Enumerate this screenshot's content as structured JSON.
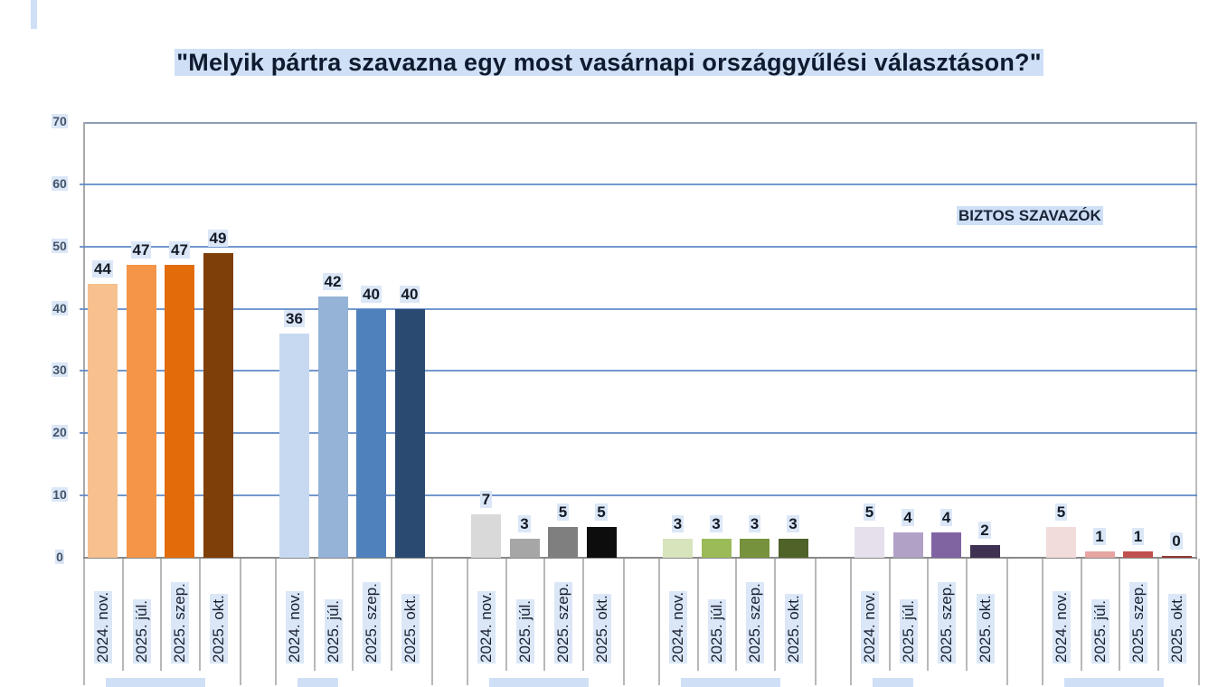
{
  "page": {
    "title": "\"Melyik pártra szavazna egy most vasárnapi országgyűlési választáson?\"",
    "annotation": "BIZTOS SZAVAZÓK"
  },
  "chart_data": {
    "type": "bar",
    "title": "\"Melyik pártra szavazna egy most vasárnapi országgyűlési választáson?\"",
    "subtitle": "BIZTOS SZAVAZÓK",
    "xlabel": "",
    "ylabel": "",
    "ylim": [
      0,
      70
    ],
    "yticks": [
      0,
      10,
      20,
      30,
      40,
      50,
      60,
      70
    ],
    "grid": true,
    "legend": "none",
    "categories": [
      "2024. nov.",
      "2025. júl.",
      "2025. szep.",
      "2025. okt."
    ],
    "groups": [
      {
        "name": "",
        "values": [
          44,
          47,
          47,
          49
        ],
        "colors": [
          "#f6c08f",
          "#f49548",
          "#e36c0a",
          "#7f3f08"
        ]
      },
      {
        "name": "",
        "values": [
          36,
          42,
          40,
          40
        ],
        "colors": [
          "#c6d9f0",
          "#95b3d7",
          "#4f81bd",
          "#2a4a72"
        ]
      },
      {
        "name": "",
        "values": [
          7,
          3,
          5,
          5
        ],
        "colors": [
          "#d9d9d9",
          "#a6a6a6",
          "#7f7f7f",
          "#0d0d0d"
        ]
      },
      {
        "name": "",
        "values": [
          3,
          3,
          3,
          3
        ],
        "colors": [
          "#d7e4bc",
          "#9bbb59",
          "#76923c",
          "#4f6228"
        ]
      },
      {
        "name": "",
        "values": [
          5,
          4,
          4,
          2
        ],
        "colors": [
          "#e5e0ec",
          "#b2a1c7",
          "#8064a2",
          "#3f3151"
        ]
      },
      {
        "name": "",
        "values": [
          5,
          1,
          1,
          0
        ],
        "colors": [
          "#f2dcdb",
          "#e6a5a3",
          "#c0504d",
          "#943634"
        ]
      }
    ],
    "note": "Group (party) names along the bottom are cut off and not legible in the screenshot."
  }
}
